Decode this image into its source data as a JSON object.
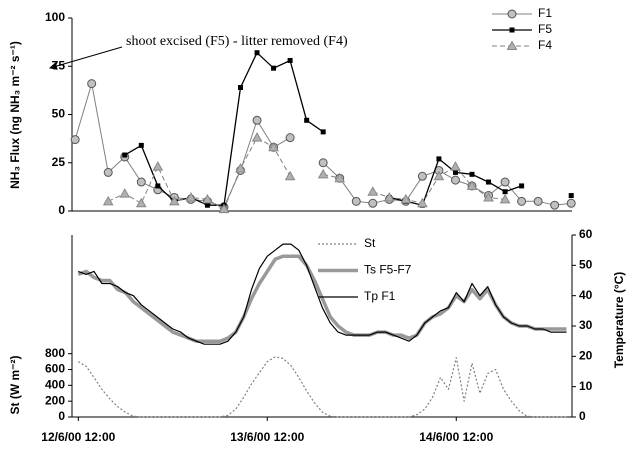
{
  "chart_data": [
    {
      "type": "line",
      "y_label": "NH₃ Flux (ng NH₃ m⁻² s⁻¹)",
      "annotation": "shoot excised (F5) - litter removed (F4)",
      "x": [
        -0.4,
        1.7,
        3.8,
        5.9,
        8,
        10.1,
        12.2,
        14.3,
        16.4,
        18.5,
        20.6,
        22.7,
        24.8,
        26.9,
        29,
        31.1,
        33.2,
        35.3,
        37.4,
        39.5,
        41.6,
        43.7,
        45.8,
        47.9,
        50,
        52.1,
        54.2,
        56.3,
        58.4,
        60.5,
        62.6
      ],
      "xlim": [
        -0.8,
        62.7
      ],
      "ylim": [
        0,
        100
      ],
      "yticks": [
        0,
        25,
        50,
        75,
        100
      ],
      "series": [
        {
          "name": "F1",
          "color": "#808080",
          "marker": "circle",
          "dash": "solid",
          "width": 1,
          "values": [
            37,
            66,
            20,
            28,
            15,
            11,
            7,
            6,
            5,
            2,
            21,
            47,
            33,
            38,
            null,
            25,
            17,
            5,
            4,
            6,
            5,
            18,
            21,
            16,
            13,
            8,
            15,
            5,
            5,
            3,
            4
          ]
        },
        {
          "name": "F5",
          "color": "#000000",
          "marker": "square",
          "dash": "solid",
          "width": 1.3,
          "values": [
            null,
            null,
            null,
            29,
            34,
            13,
            5,
            7,
            3,
            3,
            64,
            82,
            74,
            78,
            47,
            41,
            null,
            null,
            null,
            7,
            5,
            3,
            27,
            20,
            19,
            15,
            10,
            13,
            null,
            null,
            8
          ]
        },
        {
          "name": "F4",
          "color": "#808080",
          "marker": "triangle",
          "dash": "dashed",
          "width": 1,
          "values": [
            null,
            null,
            5,
            9,
            4,
            23,
            5,
            7,
            6,
            1,
            22,
            38,
            33,
            18,
            null,
            19,
            17,
            null,
            10,
            7,
            6,
            4,
            18,
            23,
            13,
            7,
            6,
            null,
            null,
            null,
            null
          ]
        }
      ]
    },
    {
      "type": "line",
      "y_label": "St (W m⁻²)",
      "y2_label": "Temperature (°C)",
      "x": [
        0,
        1,
        2,
        3,
        4,
        5,
        6,
        7,
        8,
        9,
        10,
        11,
        12,
        13,
        14,
        15,
        16,
        17,
        18,
        19,
        20,
        21,
        22,
        23,
        24,
        25,
        26,
        27,
        28,
        29,
        30,
        31,
        32,
        33,
        34,
        35,
        36,
        37,
        38,
        39,
        40,
        41,
        42,
        43,
        44,
        45,
        46,
        47,
        48,
        49,
        50,
        51,
        52,
        53,
        54,
        55,
        56,
        57,
        58,
        59,
        60,
        61,
        62
      ],
      "xlim": [
        -0.8,
        62.7
      ],
      "xticks": [
        {
          "value": 0,
          "label": "12/6/00 12:00"
        },
        {
          "value": 24,
          "label": "13/6/00 12:00"
        },
        {
          "value": 48,
          "label": "14/6/00 12:00"
        }
      ],
      "ylim": [
        0,
        2300
      ],
      "yticks": [
        0,
        200,
        400,
        600,
        800
      ],
      "y2lim": [
        0,
        60
      ],
      "y2ticks": [
        0,
        10,
        20,
        30,
        40,
        50,
        60
      ],
      "series": [
        {
          "name": "St",
          "color": "#808080",
          "dash": "dotted",
          "width": 1.2,
          "values": [
            700,
            640,
            500,
            350,
            230,
            130,
            60,
            10,
            0,
            0,
            0,
            0,
            0,
            0,
            0,
            0,
            0,
            0,
            0,
            20,
            100,
            250,
            420,
            560,
            700,
            760,
            740,
            650,
            500,
            330,
            180,
            60,
            10,
            0,
            0,
            0,
            0,
            0,
            0,
            0,
            0,
            0,
            0,
            30,
            100,
            250,
            500,
            350,
            750,
            200,
            680,
            300,
            550,
            600,
            350,
            200,
            80,
            10,
            0,
            0,
            0,
            0,
            0
          ]
        },
        {
          "name": "Ts F5-F7",
          "color": "#999999",
          "dash": "solid",
          "width": 3.5,
          "axis": "y2",
          "values": [
            47,
            48,
            46,
            45,
            45,
            42,
            41,
            38,
            36,
            34,
            32,
            30,
            28,
            27,
            26,
            25,
            25,
            25,
            25,
            26,
            28,
            33,
            39,
            44,
            48,
            52,
            53,
            53,
            53,
            50,
            45,
            39,
            33,
            30,
            28,
            27,
            27,
            27,
            28,
            28,
            27,
            27,
            26,
            27,
            31,
            33,
            34,
            36,
            40,
            38,
            42,
            39,
            42,
            37,
            33,
            31,
            30,
            30,
            29,
            29,
            29,
            29,
            29
          ]
        },
        {
          "name": "Tp F1",
          "color": "#000000",
          "dash": "solid",
          "width": 1.2,
          "axis": "y2",
          "values": [
            48,
            47,
            48,
            44,
            44,
            43,
            41,
            40,
            37,
            35,
            33,
            31,
            29,
            28,
            26,
            25,
            24,
            24,
            24,
            25,
            28,
            33,
            42,
            49,
            53,
            55,
            57,
            57,
            55,
            50,
            43,
            36,
            31,
            28,
            27,
            27,
            27,
            27,
            28,
            28,
            27,
            26,
            25,
            27,
            31,
            33,
            35,
            36,
            41,
            38,
            44,
            40,
            43,
            37,
            33,
            31,
            30,
            30,
            29,
            29,
            28,
            28,
            28
          ]
        }
      ]
    }
  ]
}
